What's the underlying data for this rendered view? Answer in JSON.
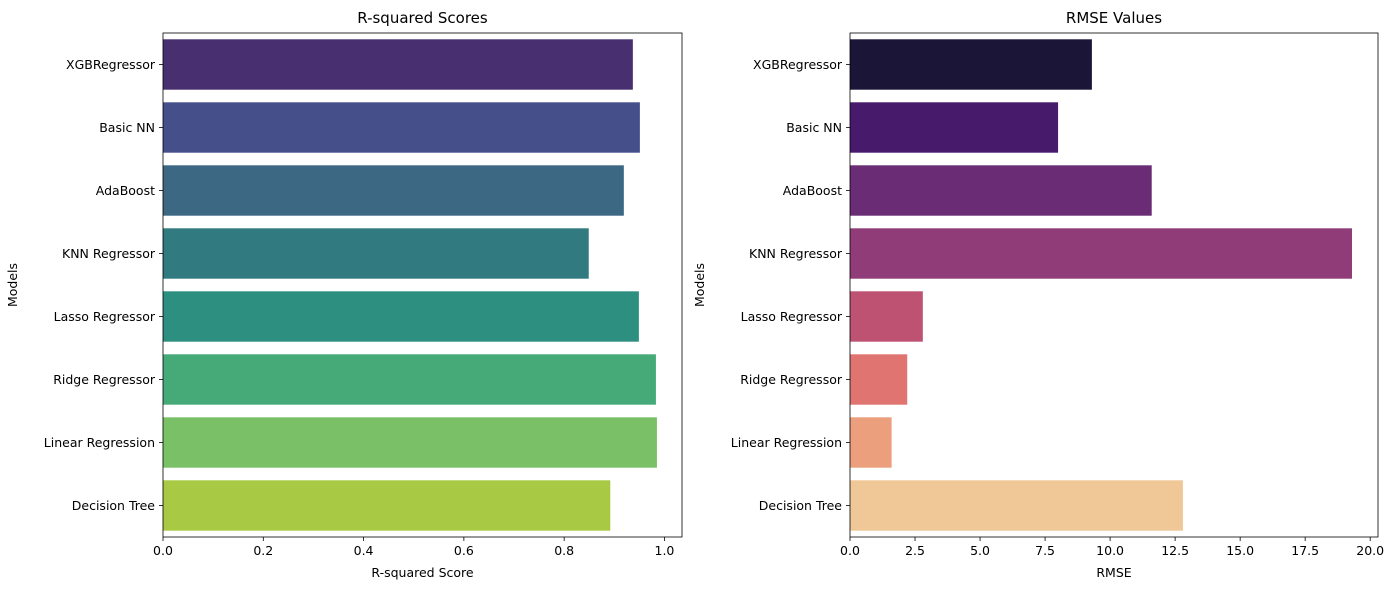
{
  "chart_data": [
    {
      "type": "bar",
      "orientation": "horizontal",
      "title": "R-squared Scores",
      "xlabel": "R-squared Score",
      "ylabel": "Models",
      "categories": [
        "XGBRegressor",
        "Basic NN",
        "AdaBoost",
        "KNN Regressor",
        "Lasso Regressor",
        "Ridge Regressor",
        "Linear Regression",
        "Decision Tree"
      ],
      "values": [
        0.937,
        0.951,
        0.919,
        0.849,
        0.949,
        0.983,
        0.985,
        0.892
      ],
      "colors": [
        "#482f6f",
        "#45508a",
        "#3c6883",
        "#317a80",
        "#2d8f7f",
        "#46aa78",
        "#79c066",
        "#a8c944"
      ],
      "xlim": [
        0,
        1.035
      ],
      "xticks": [
        0.0,
        0.2,
        0.4,
        0.6,
        0.8,
        1.0
      ],
      "xtick_labels": [
        "0.0",
        "0.2",
        "0.4",
        "0.6",
        "0.8",
        "1.0"
      ],
      "grid": false,
      "legend": "none"
    },
    {
      "type": "bar",
      "orientation": "horizontal",
      "title": "RMSE Values",
      "xlabel": "RMSE",
      "ylabel": "Models",
      "categories": [
        "XGBRegressor",
        "Basic NN",
        "AdaBoost",
        "KNN Regressor",
        "Lasso Regressor",
        "Ridge Regressor",
        "Linear Regression",
        "Decision Tree"
      ],
      "values": [
        9.3,
        8.0,
        11.6,
        19.3,
        2.8,
        2.2,
        1.6,
        12.8
      ],
      "colors": [
        "#1b1538",
        "#471a6b",
        "#6a2c74",
        "#8f3c78",
        "#bd5272",
        "#e07470",
        "#eb9f7d",
        "#f0c898"
      ],
      "xlim": [
        0,
        20.3
      ],
      "xticks": [
        0,
        2.5,
        5.0,
        7.5,
        10.0,
        12.5,
        15.0,
        17.5,
        20.0
      ],
      "xtick_labels": [
        "0.0",
        "2.5",
        "5.0",
        "7.5",
        "10.0",
        "12.5",
        "15.0",
        "17.5",
        "20.0"
      ],
      "grid": false,
      "legend": "none"
    }
  ]
}
